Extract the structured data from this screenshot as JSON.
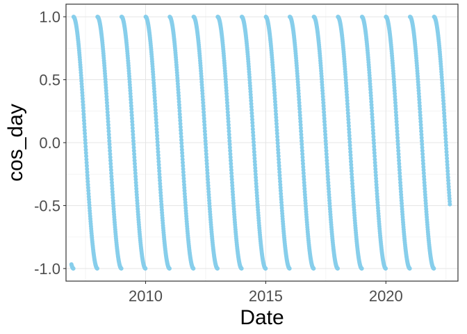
{
  "chart_data": {
    "type": "scatter",
    "xlabel": "Date",
    "ylabel": "cos_day",
    "xlim": [
      "2006-09-10",
      "2022-12-31"
    ],
    "ylim": [
      -1.1,
      1.1
    ],
    "x_ticks": [
      "2010",
      "2015",
      "2020"
    ],
    "y_ticks": [
      "1.0",
      "0.5",
      "0.0",
      "-0.5",
      "-1.0"
    ],
    "grid": true,
    "legend": "none",
    "point_color": "#87ceeb",
    "series": [
      {
        "x_range": [
          "2006-12-01",
          "2022-09-01"
        ],
        "y_formula": "cos(pi * day_of_year / 365)"
      }
    ]
  }
}
